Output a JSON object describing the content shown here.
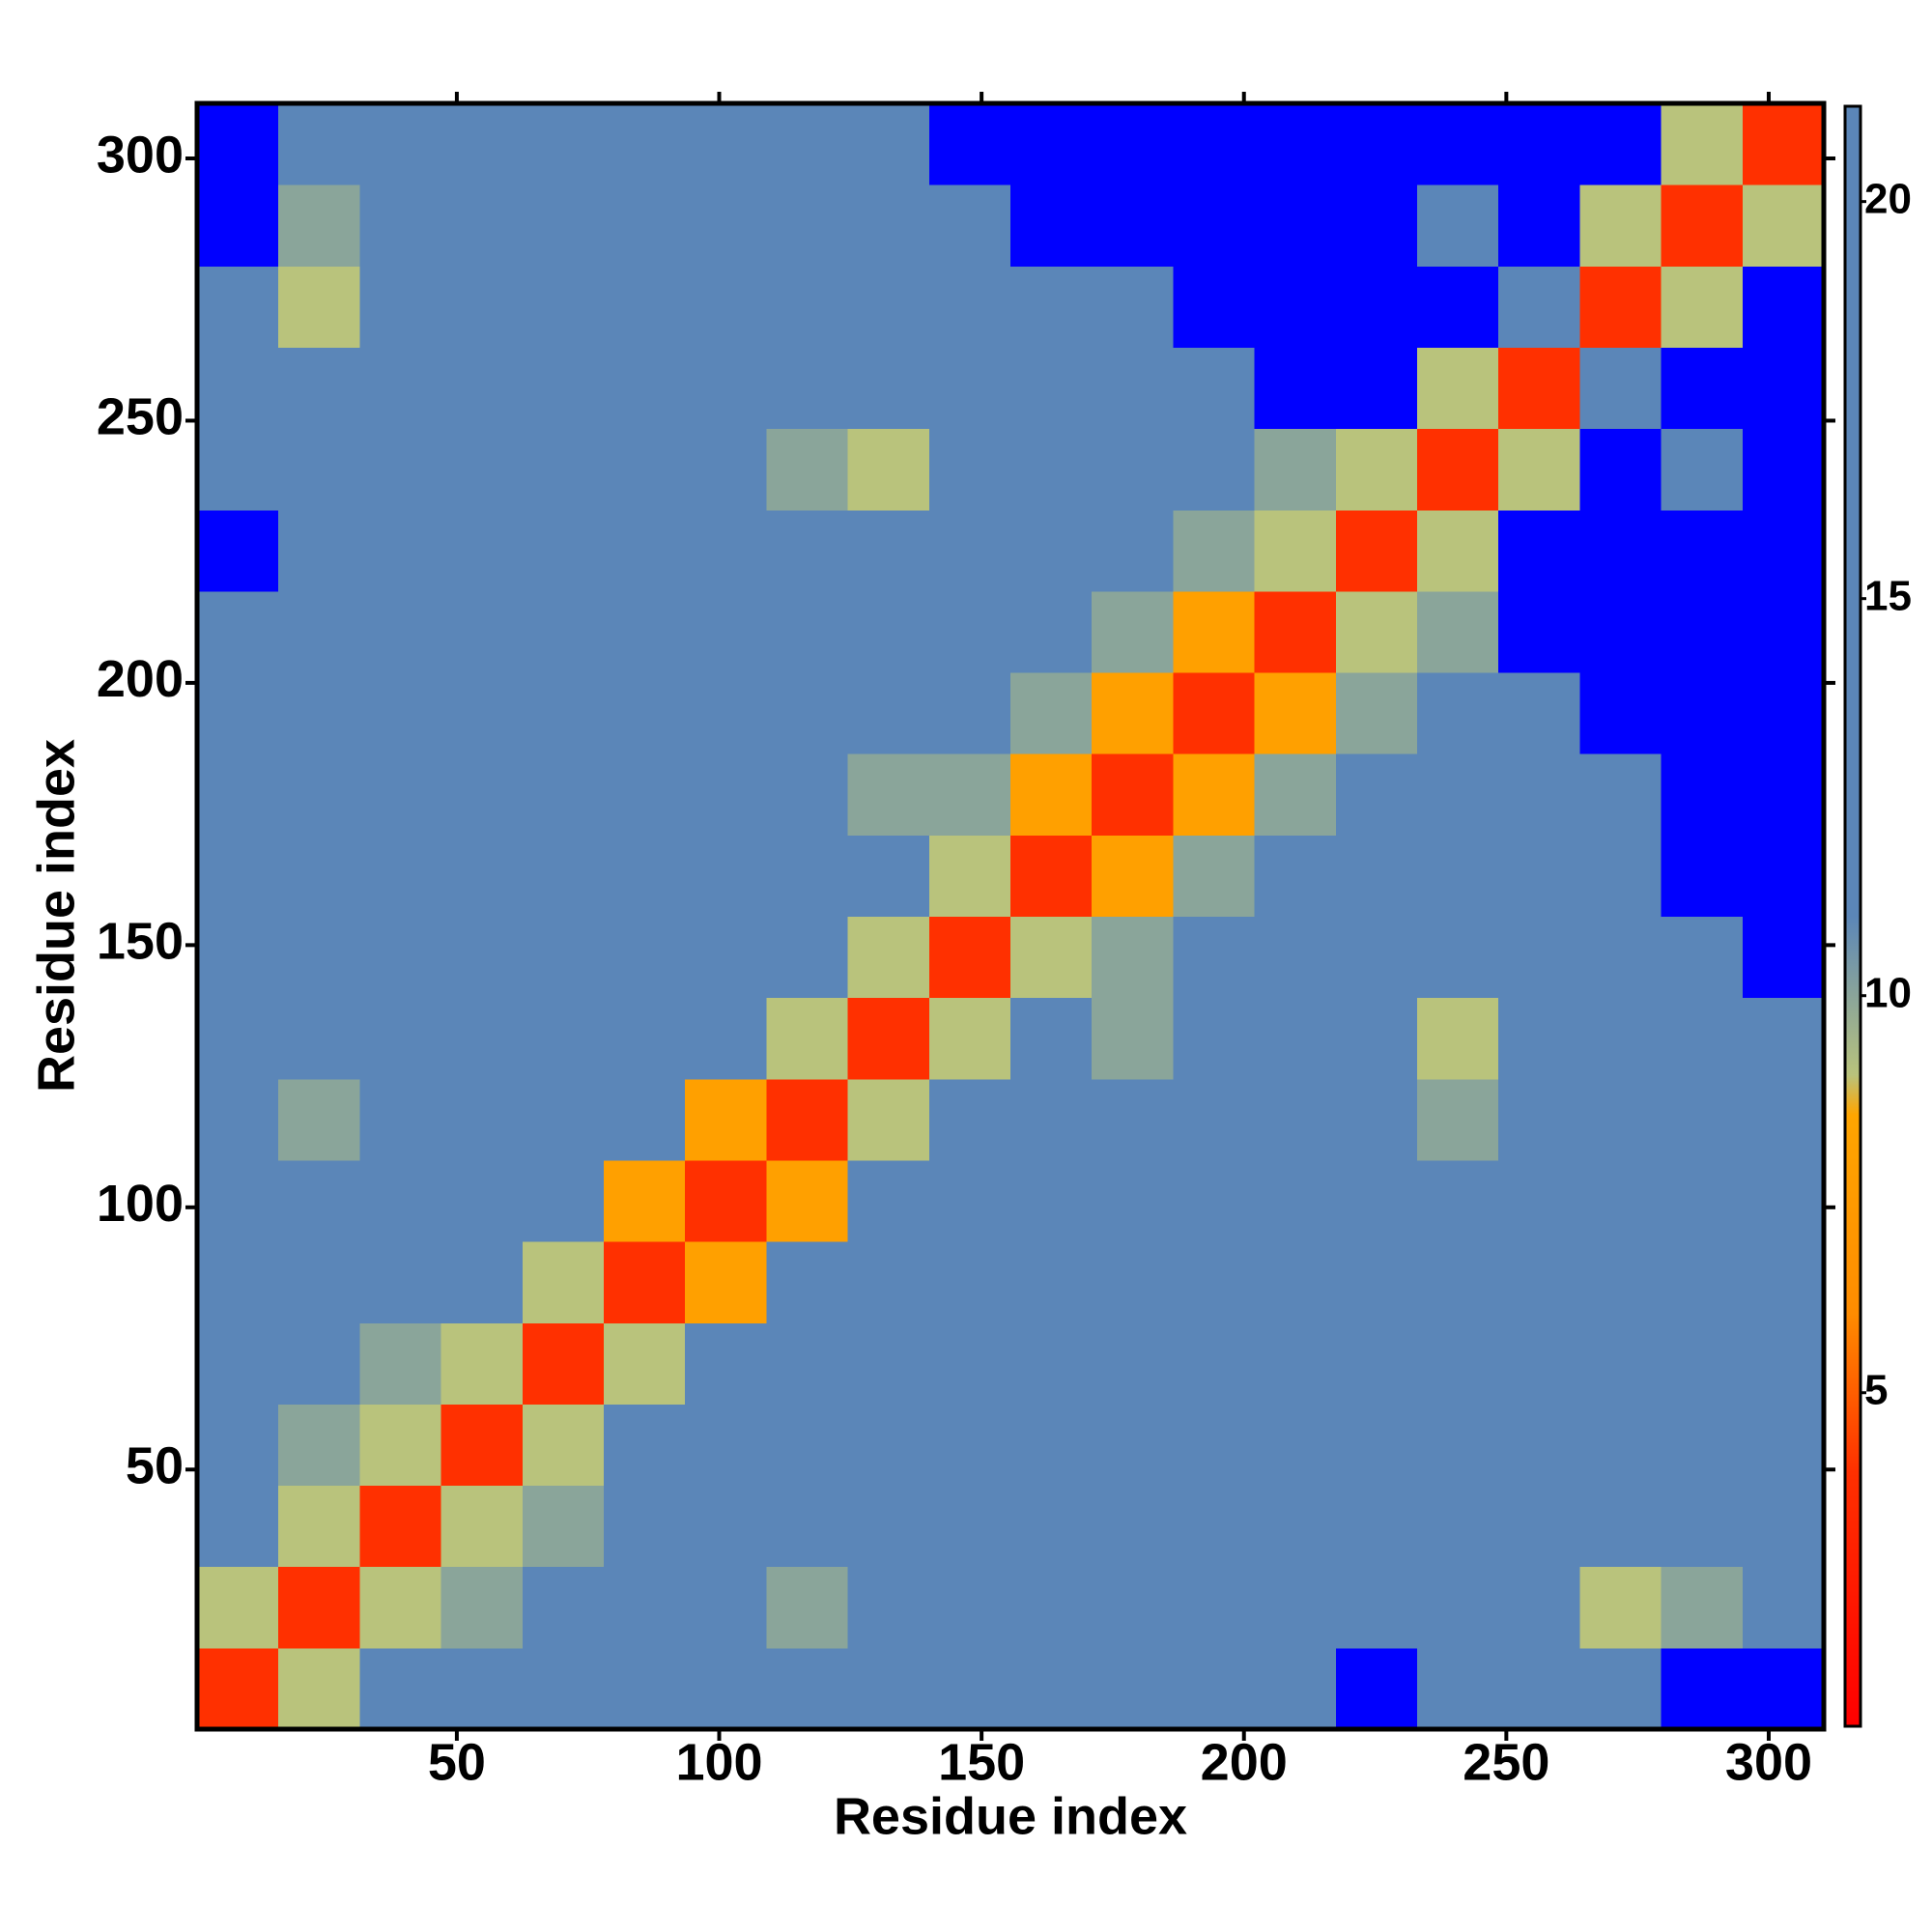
{
  "chart_data": {
    "type": "heatmap",
    "xlabel": "Residue index",
    "ylabel": "Residue index",
    "xbins": [
      0.5,
      16,
      31.5,
      47,
      62.5,
      78,
      93.5,
      109,
      124.5,
      140,
      155.5,
      171,
      186.5,
      202,
      217.5,
      233,
      248.5,
      264,
      279.5,
      295,
      310.5
    ],
    "ybins": [
      0.5,
      16,
      31.5,
      47,
      62.5,
      78,
      93.5,
      109,
      124.5,
      140,
      155.5,
      171,
      186.5,
      202,
      217.5,
      233,
      248.5,
      264,
      279.5,
      295,
      310.5
    ],
    "values": [
      [
        4,
        9,
        12,
        13,
        14,
        15,
        15,
        11,
        14,
        15,
        16,
        17,
        18,
        20,
        22,
        14,
        20,
        18,
        22,
        22
      ],
      [
        9,
        4,
        9,
        10,
        12,
        14,
        15,
        10,
        12,
        15,
        15,
        14,
        14,
        15,
        16,
        14,
        17,
        9,
        10,
        14
      ],
      [
        12,
        9,
        4,
        9,
        10,
        12,
        14,
        13,
        14,
        16,
        16,
        14,
        14,
        14,
        17,
        14,
        18,
        11,
        11,
        14
      ],
      [
        13,
        10,
        9,
        4,
        9,
        12,
        14,
        13,
        15,
        15,
        15,
        14,
        14,
        14,
        15,
        14,
        17,
        12,
        12,
        14
      ],
      [
        14,
        12,
        10,
        9,
        4,
        9,
        12,
        11,
        16,
        17,
        16,
        15,
        15,
        15,
        15,
        14,
        18,
        15,
        12,
        15
      ],
      [
        15,
        14,
        12,
        12,
        9,
        4,
        8,
        12,
        15,
        16,
        16,
        16,
        12,
        15,
        16,
        14,
        18,
        16,
        12,
        15
      ],
      [
        15,
        15,
        14,
        14,
        12,
        8,
        4,
        8,
        12,
        16,
        15,
        13,
        14,
        15,
        16,
        14,
        18,
        16,
        14,
        16
      ],
      [
        11,
        10,
        13,
        13,
        11,
        12,
        8,
        4,
        9,
        13,
        12,
        11,
        13,
        15,
        15,
        10,
        18,
        16,
        15,
        16
      ],
      [
        14,
        12,
        14,
        15,
        16,
        15,
        12,
        9,
        4,
        9,
        11,
        10,
        12,
        14,
        13,
        9,
        17,
        16,
        15,
        16
      ],
      [
        15,
        15,
        16,
        15,
        17,
        16,
        16,
        13,
        9,
        4,
        9,
        10,
        11,
        13,
        14,
        15,
        19,
        19,
        18,
        22
      ],
      [
        16,
        15,
        16,
        15,
        16,
        16,
        15,
        12,
        11,
        9,
        4,
        8,
        10,
        12,
        13,
        14,
        19,
        20,
        22,
        22
      ],
      [
        17,
        14,
        14,
        14,
        15,
        16,
        13,
        11,
        10,
        10,
        8,
        4,
        8,
        10,
        12,
        11,
        18,
        19,
        22,
        22
      ],
      [
        18,
        14,
        14,
        14,
        15,
        12,
        14,
        13,
        12,
        11,
        10,
        8,
        4,
        8,
        10,
        12,
        20,
        22,
        22,
        22
      ],
      [
        20,
        15,
        14,
        14,
        15,
        15,
        15,
        15,
        14,
        13,
        12,
        10,
        8,
        4,
        9,
        10,
        22,
        22,
        22,
        22
      ],
      [
        22,
        16,
        17,
        15,
        15,
        16,
        16,
        15,
        13,
        14,
        13,
        12,
        10,
        9,
        4,
        9,
        22,
        22,
        22,
        22
      ],
      [
        14,
        14,
        14,
        14,
        14,
        14,
        14,
        10,
        9,
        15,
        14,
        11,
        12,
        10,
        9,
        4,
        9,
        22,
        20,
        22
      ],
      [
        20,
        17,
        18,
        17,
        18,
        18,
        18,
        18,
        17,
        19,
        19,
        18,
        20,
        22,
        22,
        9,
        4,
        11,
        22,
        22
      ],
      [
        18,
        9,
        11,
        12,
        15,
        16,
        16,
        16,
        16,
        19,
        20,
        19,
        22,
        22,
        22,
        22,
        11,
        4,
        9,
        22
      ],
      [
        22,
        10,
        11,
        12,
        12,
        12,
        14,
        15,
        15,
        18,
        22,
        22,
        22,
        22,
        22,
        20,
        22,
        9,
        4,
        9
      ],
      [
        22,
        14,
        14,
        14,
        15,
        15,
        16,
        16,
        16,
        22,
        22,
        22,
        22,
        22,
        22,
        22,
        22,
        22,
        9,
        4
      ]
    ],
    "xlim": [
      0.5,
      310.5
    ],
    "ylim": [
      0.5,
      310.5
    ],
    "xticks": [
      50,
      100,
      150,
      200,
      250,
      300
    ],
    "yticks": [
      50,
      100,
      150,
      200,
      250,
      300
    ],
    "clim": [
      0.8,
      21.2
    ],
    "cticks": [
      5,
      10,
      15,
      20
    ],
    "colorscale": [
      [
        0.8,
        "#ff0000"
      ],
      [
        4,
        "#ff3000"
      ],
      [
        6,
        "#ff8c00"
      ],
      [
        8.5,
        "#ffa500"
      ],
      [
        9,
        "#b9c37c"
      ],
      [
        11,
        "#5b86b8"
      ],
      [
        21.2,
        "#5b86b8"
      ]
    ],
    "over_color": "#0000ff"
  }
}
